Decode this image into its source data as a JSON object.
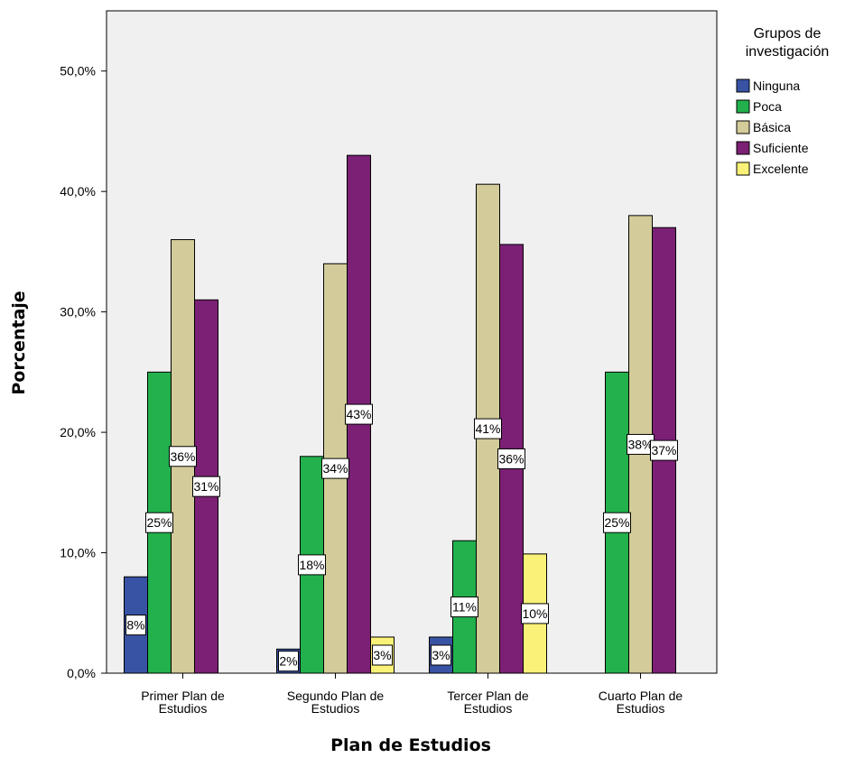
{
  "chart_data": {
    "type": "bar",
    "xlabel": "Plan de Estudios",
    "ylabel": "Porcentaje",
    "ylim": [
      0,
      55
    ],
    "yticks": [
      0,
      10,
      20,
      30,
      40,
      50
    ],
    "ytick_labels": [
      "0,0%",
      "10,0%",
      "20,0%",
      "30,0%",
      "40,0%",
      "50,0%"
    ],
    "grid": false,
    "legend_position": "right",
    "legend_title": "Grupos de investigación",
    "legend_title_lines": [
      "Grupos de",
      "investigación"
    ],
    "categories": [
      "Primer Plan de Estudios",
      "Segundo Plan de Estudios",
      "Tercer Plan de Estudios",
      "Cuarto Plan de Estudios"
    ],
    "category_lines": [
      [
        "Primer Plan de",
        "Estudios"
      ],
      [
        "Segundo Plan de",
        "Estudios"
      ],
      [
        "Tercer Plan de",
        "Estudios"
      ],
      [
        "Cuarto Plan de",
        "Estudios"
      ]
    ],
    "series": [
      {
        "name": "Ninguna",
        "color": "#3953a4",
        "values": [
          8,
          2,
          3,
          null
        ],
        "labels": [
          "8%",
          "2%",
          "3%",
          null
        ]
      },
      {
        "name": "Poca",
        "color": "#22b14c",
        "values": [
          25,
          18,
          11,
          25
        ],
        "labels": [
          "25%",
          "18%",
          "11%",
          "25%"
        ]
      },
      {
        "name": "Básica",
        "color": "#d3cc9a",
        "values": [
          36,
          34,
          40.6,
          38
        ],
        "labels": [
          "36%",
          "34%",
          "41%",
          "38%"
        ]
      },
      {
        "name": "Suficiente",
        "color": "#7b2075",
        "values": [
          31,
          43,
          35.6,
          37
        ],
        "labels": [
          "31%",
          "43%",
          "36%",
          "37%"
        ]
      },
      {
        "name": "Excelente",
        "color": "#faf278",
        "values": [
          null,
          3,
          9.9,
          null
        ],
        "labels": [
          null,
          "3%",
          "10%",
          null
        ]
      }
    ]
  }
}
